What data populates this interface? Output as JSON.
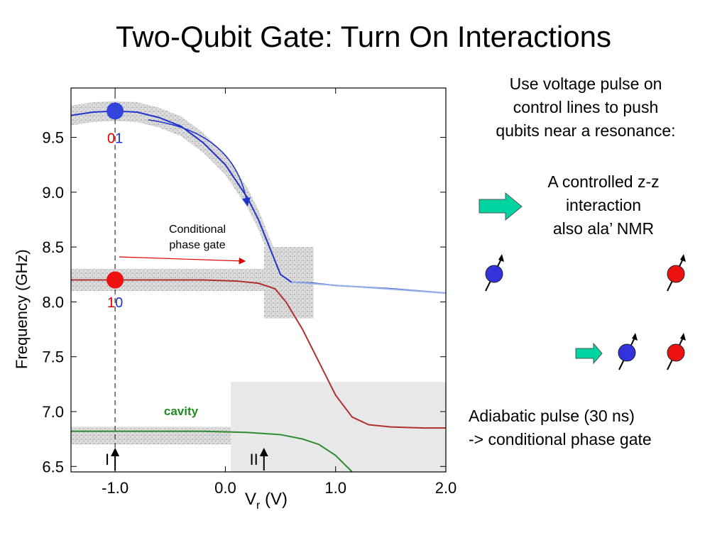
{
  "slide": {
    "title": "Two-Qubit Gate: Turn On Interactions",
    "right_text_1": [
      "Use voltage pulse on",
      "control lines to push",
      "qubits near a resonance:"
    ],
    "right_text_2": [
      "A controlled z-z",
      "interaction",
      "also ala’ NMR"
    ],
    "right_text_3": [
      "Adiabatic pulse (30 ns)",
      "-> conditional phase gate"
    ]
  },
  "chart_data": {
    "type": "line",
    "ylabel": "Frequency (GHz)",
    "xlabel_main": "V",
    "xlabel_sub": "r",
    "xlabel_unit": " (V)",
    "xlim": [
      -1.4,
      2.0
    ],
    "ylim": [
      6.45,
      9.95
    ],
    "xticks": [
      {
        "v": -1.0,
        "label": "-1.0"
      },
      {
        "v": 0.0,
        "label": "0.0"
      },
      {
        "v": 1.0,
        "label": "1.0"
      },
      {
        "v": 2.0,
        "label": "2.0"
      }
    ],
    "yticks": [
      {
        "v": 6.5,
        "label": "6.5"
      },
      {
        "v": 7.0,
        "label": "7.0"
      },
      {
        "v": 7.5,
        "label": "7.5"
      },
      {
        "v": 8.0,
        "label": "8.0"
      },
      {
        "v": 8.5,
        "label": "8.5"
      },
      {
        "v": 9.0,
        "label": "9.0"
      },
      {
        "v": 9.5,
        "label": "9.5"
      }
    ],
    "series": [
      {
        "key": "01",
        "color": "#2233cc",
        "x": [
          -1.4,
          -1.2,
          -1.0,
          -0.8,
          -0.6,
          -0.4,
          -0.2,
          0.0,
          0.2,
          0.3,
          0.4,
          0.5,
          0.6,
          0.8,
          1.0,
          1.5,
          2.0
        ],
        "y": [
          9.7,
          9.73,
          9.74,
          9.73,
          9.68,
          9.6,
          9.45,
          9.25,
          8.95,
          8.75,
          8.5,
          8.25,
          8.18,
          8.17,
          8.15,
          8.12,
          8.08
        ]
      },
      {
        "key": "10",
        "color": "#b03030",
        "x": [
          -1.4,
          -1.0,
          -0.6,
          -0.2,
          0.1,
          0.3,
          0.45,
          0.55,
          0.7,
          0.85,
          1.0,
          1.15,
          1.3,
          1.5,
          1.8,
          2.0
        ],
        "y": [
          8.2,
          8.2,
          8.2,
          8.2,
          8.19,
          8.17,
          8.12,
          8.0,
          7.75,
          7.45,
          7.15,
          6.95,
          6.88,
          6.86,
          6.85,
          6.85
        ]
      },
      {
        "key": "cavity",
        "color": "#2e8b2e",
        "x": [
          -1.4,
          -0.8,
          -0.2,
          0.2,
          0.5,
          0.7,
          0.85,
          1.0,
          1.15
        ],
        "y": [
          6.82,
          6.82,
          6.82,
          6.81,
          6.79,
          6.75,
          6.7,
          6.6,
          6.45
        ]
      }
    ],
    "points": [
      {
        "x": -1.0,
        "y": 9.74,
        "color": "#3344dd"
      },
      {
        "x": -1.0,
        "y": 8.2,
        "color": "#ee1111"
      }
    ],
    "state_labels": [
      {
        "x": -1.0,
        "y": 9.45,
        "first": "0",
        "second": "1"
      },
      {
        "x": -1.0,
        "y": 7.95,
        "first": "1",
        "second": "0"
      }
    ],
    "cavity_label": "cavity",
    "annotation": [
      "Conditional",
      "phase gate"
    ],
    "markers": [
      {
        "x": -1.0,
        "text": "I"
      },
      {
        "x": 0.35,
        "text": "II"
      }
    ],
    "colors": {
      "red": "#dd0000",
      "blue": "#2233cc",
      "green": "#228b22",
      "arrow": "#00c896"
    }
  }
}
